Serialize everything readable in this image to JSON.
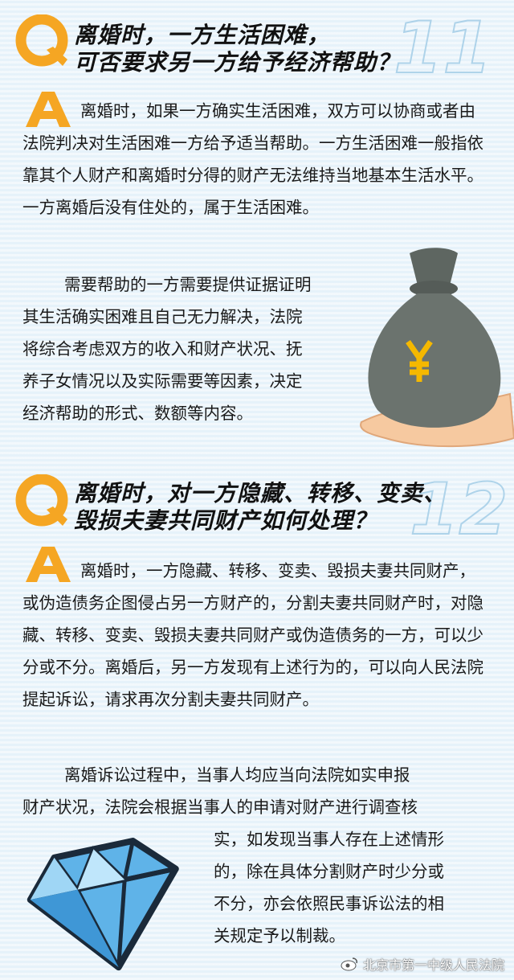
{
  "q11": {
    "number": "11",
    "title_line1": "离婚时，一方生活困难，",
    "title_line2": "可否要求另一方给予经济帮助？",
    "answer_p1": "离婚时，如果一方确实生活困难，双方可以协商或者由法院判决对生活困难一方给予适当帮助。一方生活困难一般指依靠其个人财产和离婚时分得的财产无法维持当地基本生活水平。一方离婚后没有住处的，属于生活困难。",
    "answer_p2_line1": "需要帮助的一方需要提供证据证明",
    "answer_p2_line2": "其生活确实困难且自己无力解决，法院",
    "answer_p2_line3": "将综合考虑双方的收入和财产状况、抚",
    "answer_p2_line4": "养子女情况以及实际需要等因素，决定",
    "answer_p2_line5": "经济帮助的形式、数额等内容。",
    "bag_symbol": "¥"
  },
  "q12": {
    "number": "12",
    "title_line1": "离婚时，对一方隐藏、转移、变卖、",
    "title_line2": "毁损夫妻共同财产如何处理？",
    "answer_p1": "离婚时，一方隐藏、转移、变卖、毁损夫妻共同财产，或伪造债务企图侵占另一方财产的，分割夫妻共同财产时，对隐藏、转移、变卖、毁损夫妻共同财产或伪造债务的一方，可以少分或不分。离婚后，另一方发现有上述行为的，可以向人民法院提起诉讼，请求再次分割夫妻共同财产。",
    "answer_p2_line1": "离婚诉讼过程中，当事人均应当向法院如实申报",
    "answer_p2_line2": "财产状况，法院会根据当事人的申请对财产进行调查核",
    "answer_p2_line3": "实，如发现当事人存在上述情形",
    "answer_p2_line4": "的，除在具体分割财产时少分或",
    "answer_p2_line5": "不分，亦会依照民事诉讼法的相",
    "answer_p2_line6": "关规定予以制裁。"
  },
  "footer": {
    "text": "北京市第一中级人民法院",
    "icon": "weibo-icon"
  },
  "colors": {
    "accent": "#f5a623",
    "text": "#1a1a1a",
    "num_outline": "#9fcbe6"
  }
}
